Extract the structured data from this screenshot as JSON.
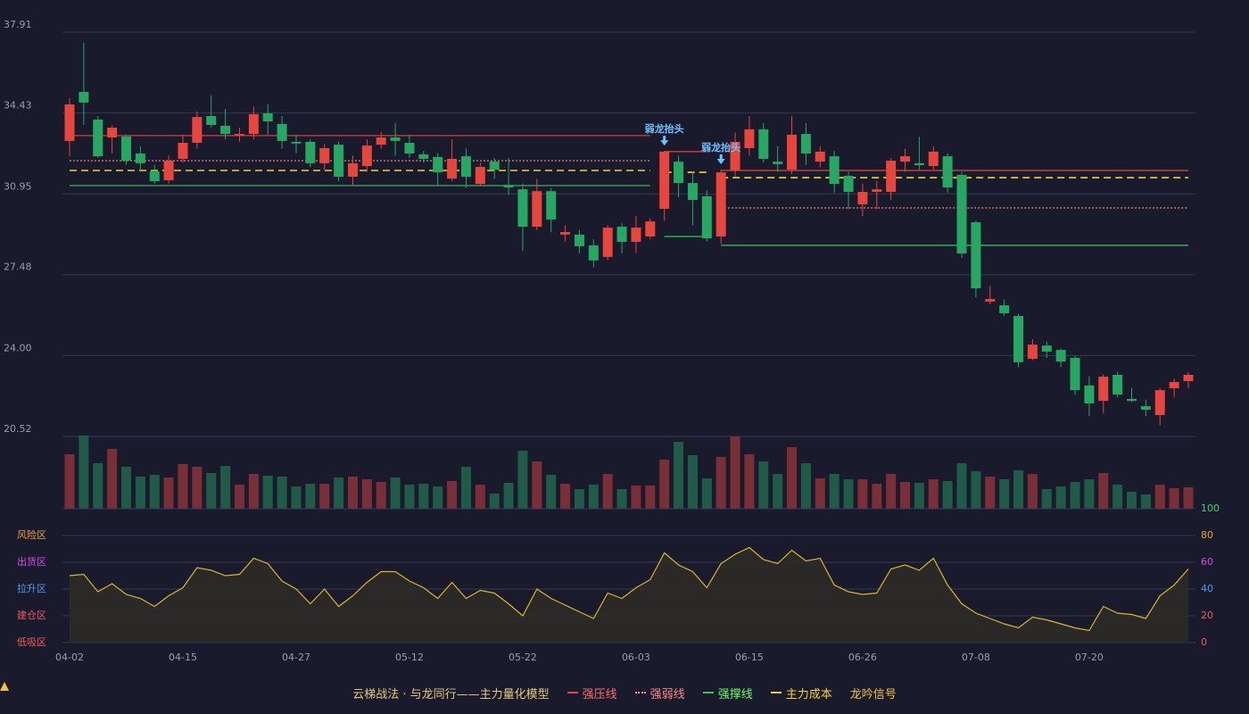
{
  "chart_data": {
    "type": "candlestick",
    "title": "云梯战法 · 与龙同行——主力量化模型",
    "categories": [
      "04-02",
      null,
      null,
      null,
      null,
      null,
      null,
      null,
      "04-15",
      null,
      null,
      null,
      null,
      null,
      null,
      null,
      "04-27",
      null,
      null,
      null,
      null,
      null,
      null,
      null,
      "05-12",
      null,
      null,
      null,
      null,
      null,
      null,
      null,
      "05-22",
      null,
      null,
      null,
      null,
      null,
      null,
      null,
      "06-03",
      null,
      null,
      null,
      null,
      null,
      null,
      null,
      "06-15",
      null,
      null,
      null,
      null,
      null,
      null,
      null,
      "06-26",
      null,
      null,
      null,
      null,
      null,
      null,
      null,
      "07-08",
      null,
      null,
      null,
      null,
      null,
      null,
      null,
      "07-20",
      null,
      null,
      null,
      null,
      null,
      null,
      null
    ],
    "open": [
      33.23,
      35.34,
      34.15,
      33.38,
      33.42,
      32.69,
      31.92,
      31.54,
      32.46,
      33.15,
      34.3,
      33.88,
      33.45,
      33.53,
      34.42,
      33.96,
      33.19,
      33.19,
      32.27,
      33.07,
      31.69,
      32.15,
      33.07,
      33.38,
      33.15,
      32.65,
      32.54,
      31.61,
      32.57,
      31.38,
      32.34,
      31.34,
      31.15,
      29.54,
      31.07,
      29.2,
      29.2,
      28.74,
      28.24,
      29.54,
      28.89,
      29.12,
      30.31,
      32.34,
      31.42,
      30.85,
      29.12,
      31.96,
      32.92,
      33.73,
      32.34,
      32.0,
      33.53,
      32.34,
      32.57,
      31.73,
      30.5,
      31.04,
      31.04,
      32.34,
      32.27,
      32.15,
      32.57,
      31.77,
      29.73,
      26.32,
      26.16,
      25.7,
      23.86,
      24.43,
      24.24,
      23.9,
      22.71,
      22.05,
      23.17,
      22.13,
      21.82,
      21.44,
      22.59,
      22.9
    ],
    "close": [
      34.8,
      34.88,
      32.57,
      33.8,
      32.38,
      32.27,
      31.5,
      32.38,
      33.15,
      34.26,
      33.92,
      33.53,
      33.53,
      34.38,
      34.07,
      33.23,
      33.12,
      32.27,
      32.92,
      31.69,
      32.27,
      33.03,
      33.38,
      33.23,
      32.69,
      32.46,
      31.88,
      32.46,
      31.69,
      32.11,
      31.99,
      31.23,
      29.54,
      31.07,
      29.85,
      29.31,
      28.7,
      28.09,
      29.5,
      28.89,
      29.5,
      29.77,
      32.77,
      31.42,
      30.69,
      29.04,
      31.88,
      33.19,
      33.73,
      32.46,
      32.23,
      33.5,
      32.69,
      32.77,
      31.38,
      31.04,
      31.04,
      31.15,
      32.38,
      32.57,
      32.19,
      32.77,
      31.23,
      28.39,
      26.89,
      26.43,
      25.82,
      23.71,
      24.47,
      24.17,
      23.74,
      22.51,
      21.94,
      23.09,
      22.32,
      22.05,
      21.67,
      22.51,
      22.86,
      23.17
    ],
    "high": [
      35.07,
      37.45,
      34.3,
      33.9,
      33.5,
      33.0,
      32.2,
      32.6,
      33.5,
      34.5,
      35.2,
      34.6,
      33.8,
      34.7,
      34.8,
      34.3,
      33.5,
      33.3,
      33.1,
      33.2,
      32.6,
      33.3,
      33.6,
      34.0,
      33.5,
      32.8,
      32.7,
      33.3,
      32.9,
      32.3,
      32.5,
      32.5,
      31.4,
      31.6,
      31.2,
      29.6,
      29.4,
      29.0,
      29.6,
      29.7,
      30.0,
      29.9,
      32.8,
      32.6,
      31.9,
      31.1,
      32.0,
      33.6,
      34.3,
      34.0,
      33.0,
      34.3,
      34.0,
      33.0,
      32.8,
      31.9,
      31.4,
      31.5,
      32.5,
      32.9,
      33.4,
      33.0,
      32.7,
      31.9,
      29.8,
      27.0,
      26.4,
      25.8,
      24.7,
      24.6,
      24.3,
      24.0,
      23.1,
      23.2,
      23.3,
      22.6,
      22.1,
      22.6,
      23.0,
      23.3
    ],
    "low": [
      32.57,
      33.92,
      32.5,
      32.7,
      32.2,
      31.9,
      31.4,
      31.4,
      32.3,
      32.9,
      33.8,
      33.3,
      33.2,
      33.3,
      33.5,
      32.9,
      32.7,
      32.1,
      32.0,
      31.5,
      31.3,
      31.9,
      32.9,
      32.6,
      32.5,
      32.3,
      31.3,
      31.5,
      31.2,
      31.3,
      31.6,
      30.9,
      28.5,
      29.4,
      29.3,
      28.9,
      28.4,
      27.8,
      28.1,
      28.4,
      28.4,
      29.0,
      29.8,
      30.8,
      29.6,
      28.9,
      28.8,
      31.7,
      32.6,
      32.3,
      31.9,
      31.8,
      32.2,
      32.1,
      31.0,
      30.3,
      30.0,
      30.3,
      30.7,
      31.9,
      32.0,
      32.0,
      31.0,
      28.2,
      26.5,
      26.2,
      25.7,
      23.5,
      23.8,
      23.9,
      23.5,
      22.3,
      21.4,
      21.5,
      22.2,
      22.0,
      21.4,
      21.0,
      22.2,
      22.6
    ],
    "up_color": "#e8453c",
    "down_color": "#27a862",
    "ylim": [
      20.52,
      37.91
    ],
    "yticks": [
      37.91,
      34.43,
      30.95,
      27.48,
      {
        "value": 24,
        "label": "24.00"
      },
      20.52
    ],
    "grid": true,
    "volume": [
      61,
      82,
      51,
      67,
      47,
      36,
      38,
      35,
      50,
      47,
      40,
      48,
      27,
      39,
      37,
      36,
      25,
      28,
      28,
      35,
      36,
      33,
      30,
      35,
      27,
      28,
      25,
      31,
      47,
      27,
      17,
      29,
      65,
      53,
      38,
      28,
      22,
      27,
      39,
      22,
      26,
      26,
      55,
      75,
      60,
      34,
      58,
      81,
      61,
      53,
      39,
      69,
      51,
      34,
      39,
      33,
      33,
      28,
      39,
      30,
      29,
      33,
      31,
      51,
      42,
      36,
      33,
      43,
      39,
      22,
      25,
      30,
      33,
      40,
      27,
      19,
      16,
      27,
      23,
      24
    ],
    "volume_up_color": "#7a2f36",
    "volume_down_color": "#1f5b46",
    "levels": [
      {
        "name": "强压线",
        "color": "#e8453c",
        "dash": "solid",
        "text_color": "#ff6b6b",
        "values": [
          33.46,
          33.46,
          33.46,
          33.46,
          33.46,
          33.46,
          33.46,
          33.46,
          33.46,
          33.46,
          33.46,
          33.46,
          33.46,
          33.46,
          33.46,
          33.46,
          33.46,
          33.46,
          33.46,
          33.46,
          33.46,
          33.46,
          33.46,
          33.46,
          33.46,
          33.46,
          33.46,
          33.46,
          33.46,
          33.46,
          33.46,
          33.46,
          33.46,
          33.46,
          33.46,
          33.46,
          33.46,
          33.46,
          33.46,
          33.46,
          33.46,
          33.46,
          32.77,
          32.77,
          32.77,
          32.77,
          31.96,
          31.96,
          31.96,
          31.96,
          31.96,
          31.96,
          31.96,
          31.96,
          31.96,
          31.96,
          31.96,
          31.96,
          31.96,
          31.96,
          31.96,
          31.96,
          31.96,
          31.96,
          31.96,
          31.96,
          31.96,
          31.96,
          31.96,
          31.96,
          31.96,
          31.96,
          31.96,
          31.96,
          31.96,
          31.96,
          31.96,
          31.96,
          31.96,
          31.96
        ]
      },
      {
        "name": "强弱线",
        "color": "#ff8a8a",
        "dash": "dotted",
        "text_color": "#ff8a8a",
        "values": [
          32.38,
          32.38,
          32.38,
          32.38,
          32.38,
          32.38,
          32.38,
          32.38,
          32.38,
          32.38,
          32.38,
          32.38,
          32.38,
          32.38,
          32.38,
          32.38,
          32.38,
          32.38,
          32.38,
          32.38,
          32.38,
          32.38,
          32.38,
          32.38,
          32.38,
          32.38,
          32.38,
          32.38,
          32.38,
          32.38,
          32.38,
          32.38,
          32.38,
          32.38,
          32.38,
          32.38,
          32.38,
          32.38,
          32.38,
          32.38,
          32.38,
          32.38,
          null,
          null,
          null,
          null,
          30.35,
          30.35,
          30.35,
          30.35,
          30.35,
          30.35,
          30.35,
          30.35,
          30.35,
          30.35,
          30.35,
          30.35,
          30.35,
          30.35,
          30.35,
          30.35,
          30.35,
          30.35,
          30.35,
          30.35,
          30.35,
          30.35,
          30.35,
          30.35,
          30.35,
          30.35,
          30.35,
          30.35,
          30.35,
          30.35,
          30.35,
          30.35,
          30.35,
          30.35
        ]
      },
      {
        "name": "强撑线",
        "color": "#3cc45a",
        "dash": "solid",
        "text_color": "#66ff66",
        "values": [
          31.31,
          31.31,
          31.31,
          31.31,
          31.31,
          31.31,
          31.31,
          31.31,
          31.31,
          31.31,
          31.31,
          31.31,
          31.31,
          31.31,
          31.31,
          31.31,
          31.31,
          31.31,
          31.31,
          31.31,
          31.31,
          31.31,
          31.31,
          31.31,
          31.31,
          31.31,
          31.31,
          31.31,
          31.31,
          31.31,
          31.31,
          31.31,
          31.31,
          31.31,
          31.31,
          31.31,
          31.31,
          31.31,
          31.31,
          31.31,
          31.31,
          31.31,
          29.12,
          29.12,
          29.12,
          29.12,
          28.74,
          28.74,
          28.74,
          28.74,
          28.74,
          28.74,
          28.74,
          28.74,
          28.74,
          28.74,
          28.74,
          28.74,
          28.74,
          28.74,
          28.74,
          28.74,
          28.74,
          28.74,
          28.74,
          28.74,
          28.74,
          28.74,
          28.74,
          28.74,
          28.74,
          28.74,
          28.74,
          28.74,
          28.74,
          28.74,
          28.74,
          28.74,
          28.74,
          28.74
        ]
      },
      {
        "name": "主力成本",
        "color": "#f5d22a",
        "dash": "dashed",
        "text_color": "#f5d22a",
        "values": [
          31.96,
          31.96,
          31.96,
          31.96,
          31.96,
          31.96,
          31.96,
          31.96,
          31.96,
          31.96,
          31.96,
          31.96,
          31.96,
          31.96,
          31.96,
          31.96,
          31.96,
          31.96,
          31.96,
          31.96,
          31.96,
          31.96,
          31.96,
          31.96,
          31.96,
          31.96,
          31.96,
          31.96,
          31.96,
          31.96,
          31.96,
          31.96,
          31.96,
          31.96,
          31.96,
          31.96,
          31.96,
          31.96,
          31.96,
          31.96,
          31.96,
          31.96,
          31.88,
          31.88,
          31.88,
          31.88,
          31.65,
          31.65,
          31.65,
          31.65,
          31.65,
          31.65,
          31.65,
          31.65,
          31.65,
          31.65,
          31.65,
          31.65,
          31.65,
          31.65,
          31.65,
          31.65,
          31.65,
          31.65,
          31.65,
          31.65,
          31.65,
          31.65,
          31.65,
          31.65,
          31.65,
          31.65,
          31.65,
          31.65,
          31.65,
          31.65,
          31.65,
          31.65,
          31.65,
          31.65
        ]
      }
    ],
    "signal": {
      "name": "龙吟信号",
      "color": "#f5c242"
    },
    "annotations": [
      {
        "text": "弱龙抬头",
        "index": 42,
        "color": "#6cc4ff"
      },
      {
        "text": "弱龙抬头",
        "index": 46,
        "color": "#6cc4ff"
      }
    ],
    "indicator": {
      "values": [
        50,
        51,
        38,
        44,
        36,
        33,
        27,
        35,
        41,
        56,
        54,
        50,
        51,
        63,
        59,
        46,
        40,
        29,
        40,
        27,
        35,
        45,
        53,
        53,
        46,
        41,
        33,
        45,
        33,
        39,
        37,
        29,
        20,
        40,
        33,
        28,
        23,
        18,
        37,
        33,
        41,
        47,
        67,
        58,
        53,
        41,
        59,
        66,
        71,
        62,
        59,
        69,
        61,
        63,
        43,
        38,
        36,
        37,
        55,
        58,
        54,
        63,
        43,
        29,
        22,
        18,
        14,
        11,
        19,
        17,
        14,
        11,
        9,
        27,
        22,
        21,
        18,
        35,
        43,
        55
      ],
      "color": "#d9b52a",
      "fill": "#2e2b28",
      "ylim": [
        0,
        100
      ],
      "yticks": [
        100,
        80,
        60,
        40,
        20,
        0
      ],
      "ytick_colors": [
        "#3cd66a",
        "#e8a33c",
        "#d946ef",
        "#4a9ef5",
        "#f05a5a",
        "#f05a5a"
      ],
      "zones": [
        {
          "label": "风险区",
          "value": 80,
          "color": "#e8a33c"
        },
        {
          "label": "出货区",
          "value": 60,
          "color": "#d946ef"
        },
        {
          "label": "拉升区",
          "value": 40,
          "color": "#4a9ef5"
        },
        {
          "label": "建仓区",
          "value": 20,
          "color": "#f05a5a"
        },
        {
          "label": "低吸区",
          "value": 0,
          "color": "#f05a5a"
        }
      ]
    }
  }
}
